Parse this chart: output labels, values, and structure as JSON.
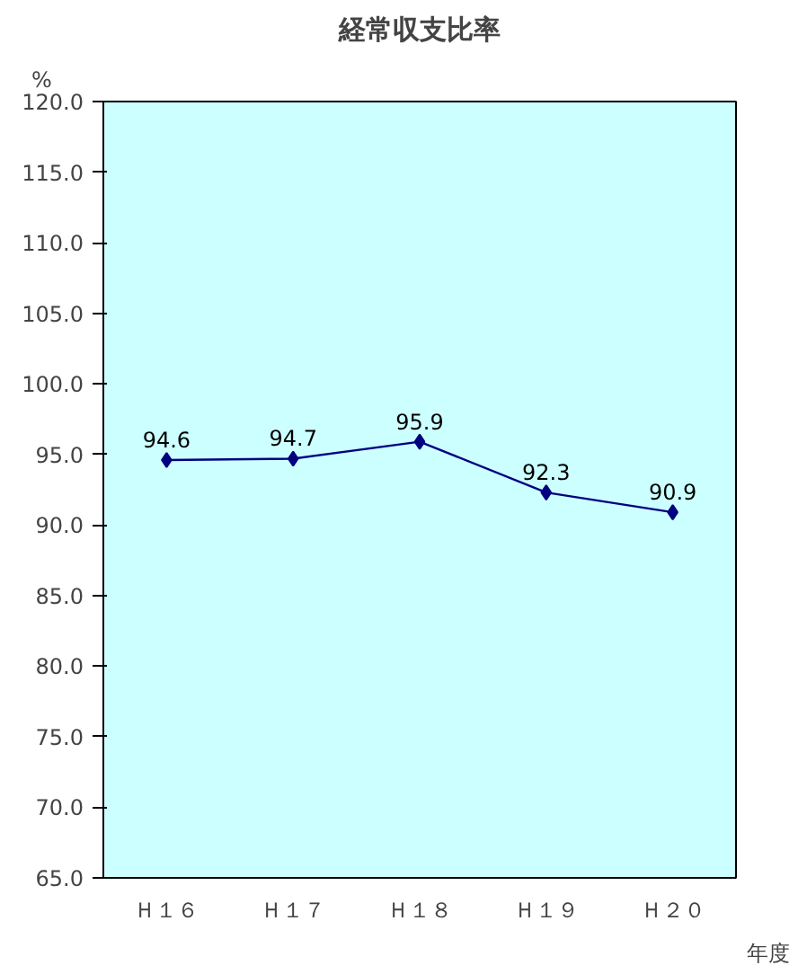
{
  "chart_data": {
    "type": "line",
    "title": "経常収支比率",
    "ylabel": "%",
    "xlabel": "年度",
    "categories": [
      "Ｈ１６",
      "Ｈ１７",
      "Ｈ１８",
      "Ｈ１９",
      "Ｈ２０"
    ],
    "series": [
      {
        "color": "#000080",
        "values": [
          94.6,
          94.7,
          95.9,
          92.3,
          90.9
        ]
      }
    ],
    "ylim": [
      65,
      120
    ],
    "yticks": [
      {
        "value": 65,
        "label": "65.0"
      },
      {
        "value": 70,
        "label": "70.0"
      },
      {
        "value": 75,
        "label": "75.0"
      },
      {
        "value": 80,
        "label": "80.0"
      },
      {
        "value": 85,
        "label": "85.0"
      },
      {
        "value": 90,
        "label": "90.0"
      },
      {
        "value": 95,
        "label": "95.0"
      },
      {
        "value": 100,
        "label": "100.0"
      },
      {
        "value": 105,
        "label": "105.0"
      },
      {
        "value": 110,
        "label": "110.0"
      },
      {
        "value": 115,
        "label": "115.0"
      },
      {
        "value": 120,
        "label": "120.0"
      }
    ],
    "data_labels": true,
    "marker": "diamond",
    "line_style": "solid",
    "grid": false
  }
}
